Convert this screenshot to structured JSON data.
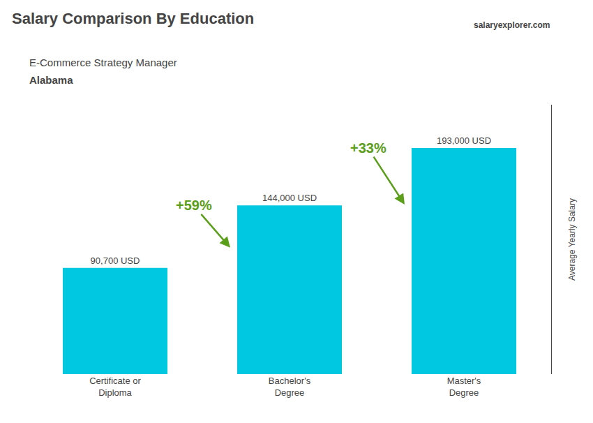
{
  "chart_data": {
    "type": "bar",
    "title": "Salary Comparison By Education",
    "subtitle": [
      "E-Commerce Strategy Manager",
      "Alabama"
    ],
    "source": "salaryexplorer.com",
    "ylabel": "Average Yearly Salary",
    "categories": [
      "Certificate or\nDiploma",
      "Bachelor's\nDegree",
      "Master's\nDegree"
    ],
    "values": [
      90700,
      144000,
      193000
    ],
    "value_labels": [
      "90,700 USD",
      "144,000 USD",
      "193,000 USD"
    ],
    "data_labels": true,
    "annotations": [
      "+59%",
      "+33%"
    ],
    "color": "#00c8e0",
    "ylim": [
      0,
      230000
    ],
    "grid": false,
    "tick_labels": "x"
  }
}
